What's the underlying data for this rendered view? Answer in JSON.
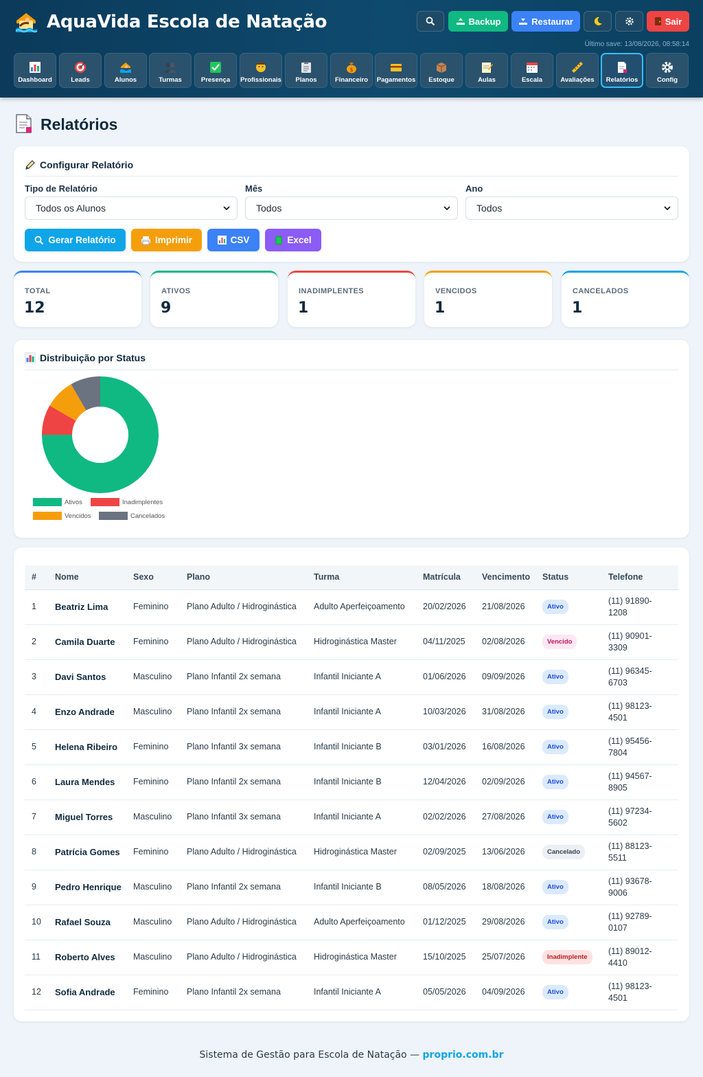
{
  "app": {
    "title": "AquaVida Escola de Natação",
    "last_save": "Último save: 13/08/2026, 08:58:14"
  },
  "header_buttons": [
    {
      "id": "search",
      "label": "",
      "icon": "search-icon"
    },
    {
      "id": "backup",
      "label": "Backup",
      "icon": "upload-icon"
    },
    {
      "id": "restore",
      "label": "Restaurar",
      "icon": "download-icon"
    },
    {
      "id": "theme",
      "label": "",
      "icon": "moon-icon"
    },
    {
      "id": "settings",
      "label": "",
      "icon": "gear-icon"
    },
    {
      "id": "logout",
      "label": "Sair",
      "icon": "door-icon"
    }
  ],
  "nav": {
    "items": [
      {
        "label": "Dashboard",
        "icon": "bar-chart-icon"
      },
      {
        "label": "Leads",
        "icon": "target-icon"
      },
      {
        "label": "Alunos",
        "icon": "swimmer-icon"
      },
      {
        "label": "Turmas",
        "icon": "group-icon"
      },
      {
        "label": "Presença",
        "icon": "checkmark-icon"
      },
      {
        "label": "Profissionais",
        "icon": "teacher-icon"
      },
      {
        "label": "Planos",
        "icon": "clipboard-icon"
      },
      {
        "label": "Financeiro",
        "icon": "money-bag-icon"
      },
      {
        "label": "Pagamentos",
        "icon": "credit-card-icon"
      },
      {
        "label": "Estoque",
        "icon": "box-icon"
      },
      {
        "label": "Aulas",
        "icon": "notepad-icon"
      },
      {
        "label": "Escala",
        "icon": "calendar-icon"
      },
      {
        "label": "Avaliações",
        "icon": "ruler-icon"
      },
      {
        "label": "Relatórios",
        "icon": "report-icon"
      },
      {
        "label": "Config",
        "icon": "gear-icon"
      }
    ],
    "active": "Relatórios"
  },
  "page": {
    "title": "Relatórios"
  },
  "config": {
    "title": "Configurar Relatório",
    "tipo_label": "Tipo de Relatório",
    "tipo_value": "Todos os Alunos",
    "mes_label": "Mês",
    "mes_value": "Todos",
    "ano_label": "Ano",
    "ano_value": "Todos",
    "buttons": {
      "gerar": "Gerar Relatório",
      "imprimir": "Imprimir",
      "csv": "CSV",
      "excel": "Excel"
    }
  },
  "stats": [
    {
      "label": "TOTAL",
      "value": "12",
      "color": "#3b82f6"
    },
    {
      "label": "ATIVOS",
      "value": "9",
      "color": "#10b981"
    },
    {
      "label": "INADIMPLENTES",
      "value": "1",
      "color": "#ef4444"
    },
    {
      "label": "VENCIDOS",
      "value": "1",
      "color": "#f59e0b"
    },
    {
      "label": "CANCELADOS",
      "value": "1",
      "color": "#0ea5e9"
    }
  ],
  "distribution": {
    "title": "Distribuição por Status"
  },
  "chart_data": {
    "type": "pie",
    "donut": true,
    "categories": [
      "Ativos",
      "Inadimplentes",
      "Vencidos",
      "Cancelados"
    ],
    "values": [
      9,
      1,
      1,
      1
    ],
    "colors": [
      "#10b981",
      "#ef4444",
      "#f59e0b",
      "#6b7280"
    ],
    "legend_position": "bottom"
  },
  "table": {
    "headers": [
      "#",
      "Nome",
      "Sexo",
      "Plano",
      "Turma",
      "Matrícula",
      "Vencimento",
      "Status",
      "Telefone"
    ],
    "rows": [
      {
        "n": "1",
        "nome": "Beatriz Lima",
        "sexo": "Feminino",
        "plano": "Plano Adulto / Hidroginástica",
        "turma": "Adulto Aperfeiçoamento",
        "matricula": "20/02/2026",
        "vencimento": "21/08/2026",
        "status": "Ativo",
        "status_kind": "ativo",
        "telefone": "(11) 91890-1208"
      },
      {
        "n": "2",
        "nome": "Camila Duarte",
        "sexo": "Feminino",
        "plano": "Plano Adulto / Hidroginástica",
        "turma": "Hidroginástica Master",
        "matricula": "04/11/2025",
        "vencimento": "02/08/2026",
        "status": "Vencido",
        "status_kind": "vencido",
        "telefone": "(11) 90901-3309"
      },
      {
        "n": "3",
        "nome": "Davi Santos",
        "sexo": "Masculino",
        "plano": "Plano Infantil 2x semana",
        "turma": "Infantil Iniciante A",
        "matricula": "01/06/2026",
        "vencimento": "09/09/2026",
        "status": "Ativo",
        "status_kind": "ativo",
        "telefone": "(11) 96345-6703"
      },
      {
        "n": "4",
        "nome": "Enzo Andrade",
        "sexo": "Masculino",
        "plano": "Plano Infantil 2x semana",
        "turma": "Infantil Iniciante A",
        "matricula": "10/03/2026",
        "vencimento": "31/08/2026",
        "status": "Ativo",
        "status_kind": "ativo",
        "telefone": "(11) 98123-4501"
      },
      {
        "n": "5",
        "nome": "Helena Ribeiro",
        "sexo": "Feminino",
        "plano": "Plano Infantil 3x semana",
        "turma": "Infantil Iniciante B",
        "matricula": "03/01/2026",
        "vencimento": "16/08/2026",
        "status": "Ativo",
        "status_kind": "ativo",
        "telefone": "(11) 95456-7804"
      },
      {
        "n": "6",
        "nome": "Laura Mendes",
        "sexo": "Feminino",
        "plano": "Plano Infantil 2x semana",
        "turma": "Infantil Iniciante B",
        "matricula": "12/04/2026",
        "vencimento": "02/09/2026",
        "status": "Ativo",
        "status_kind": "ativo",
        "telefone": "(11) 94567-8905"
      },
      {
        "n": "7",
        "nome": "Miguel Torres",
        "sexo": "Masculino",
        "plano": "Plano Infantil 3x semana",
        "turma": "Infantil Iniciante A",
        "matricula": "02/02/2026",
        "vencimento": "27/08/2026",
        "status": "Ativo",
        "status_kind": "ativo",
        "telefone": "(11) 97234-5602"
      },
      {
        "n": "8",
        "nome": "Patrícia Gomes",
        "sexo": "Feminino",
        "plano": "Plano Adulto / Hidroginástica",
        "turma": "Hidroginástica Master",
        "matricula": "02/09/2025",
        "vencimento": "13/06/2026",
        "status": "Cancelado",
        "status_kind": "cancelado",
        "telefone": "(11) 88123-5511"
      },
      {
        "n": "9",
        "nome": "Pedro Henrique",
        "sexo": "Masculino",
        "plano": "Plano Infantil 2x semana",
        "turma": "Infantil Iniciante B",
        "matricula": "08/05/2026",
        "vencimento": "18/08/2026",
        "status": "Ativo",
        "status_kind": "ativo",
        "telefone": "(11) 93678-9006"
      },
      {
        "n": "10",
        "nome": "Rafael Souza",
        "sexo": "Masculino",
        "plano": "Plano Adulto / Hidroginástica",
        "turma": "Adulto Aperfeiçoamento",
        "matricula": "01/12/2025",
        "vencimento": "29/08/2026",
        "status": "Ativo",
        "status_kind": "ativo",
        "telefone": "(11) 92789-0107"
      },
      {
        "n": "11",
        "nome": "Roberto Alves",
        "sexo": "Masculino",
        "plano": "Plano Adulto / Hidroginástica",
        "turma": "Hidroginástica Master",
        "matricula": "15/10/2025",
        "vencimento": "25/07/2026",
        "status": "Inadimplente",
        "status_kind": "inadimplente",
        "telefone": "(11) 89012-4410"
      },
      {
        "n": "12",
        "nome": "Sofia Andrade",
        "sexo": "Feminino",
        "plano": "Plano Infantil 2x semana",
        "turma": "Infantil Iniciante A",
        "matricula": "05/05/2026",
        "vencimento": "04/09/2026",
        "status": "Ativo",
        "status_kind": "ativo",
        "telefone": "(11) 98123-4501"
      }
    ]
  },
  "footer": {
    "text": "Sistema de Gestão para Escola de Natação  —",
    "link": "proprio.com.br"
  }
}
